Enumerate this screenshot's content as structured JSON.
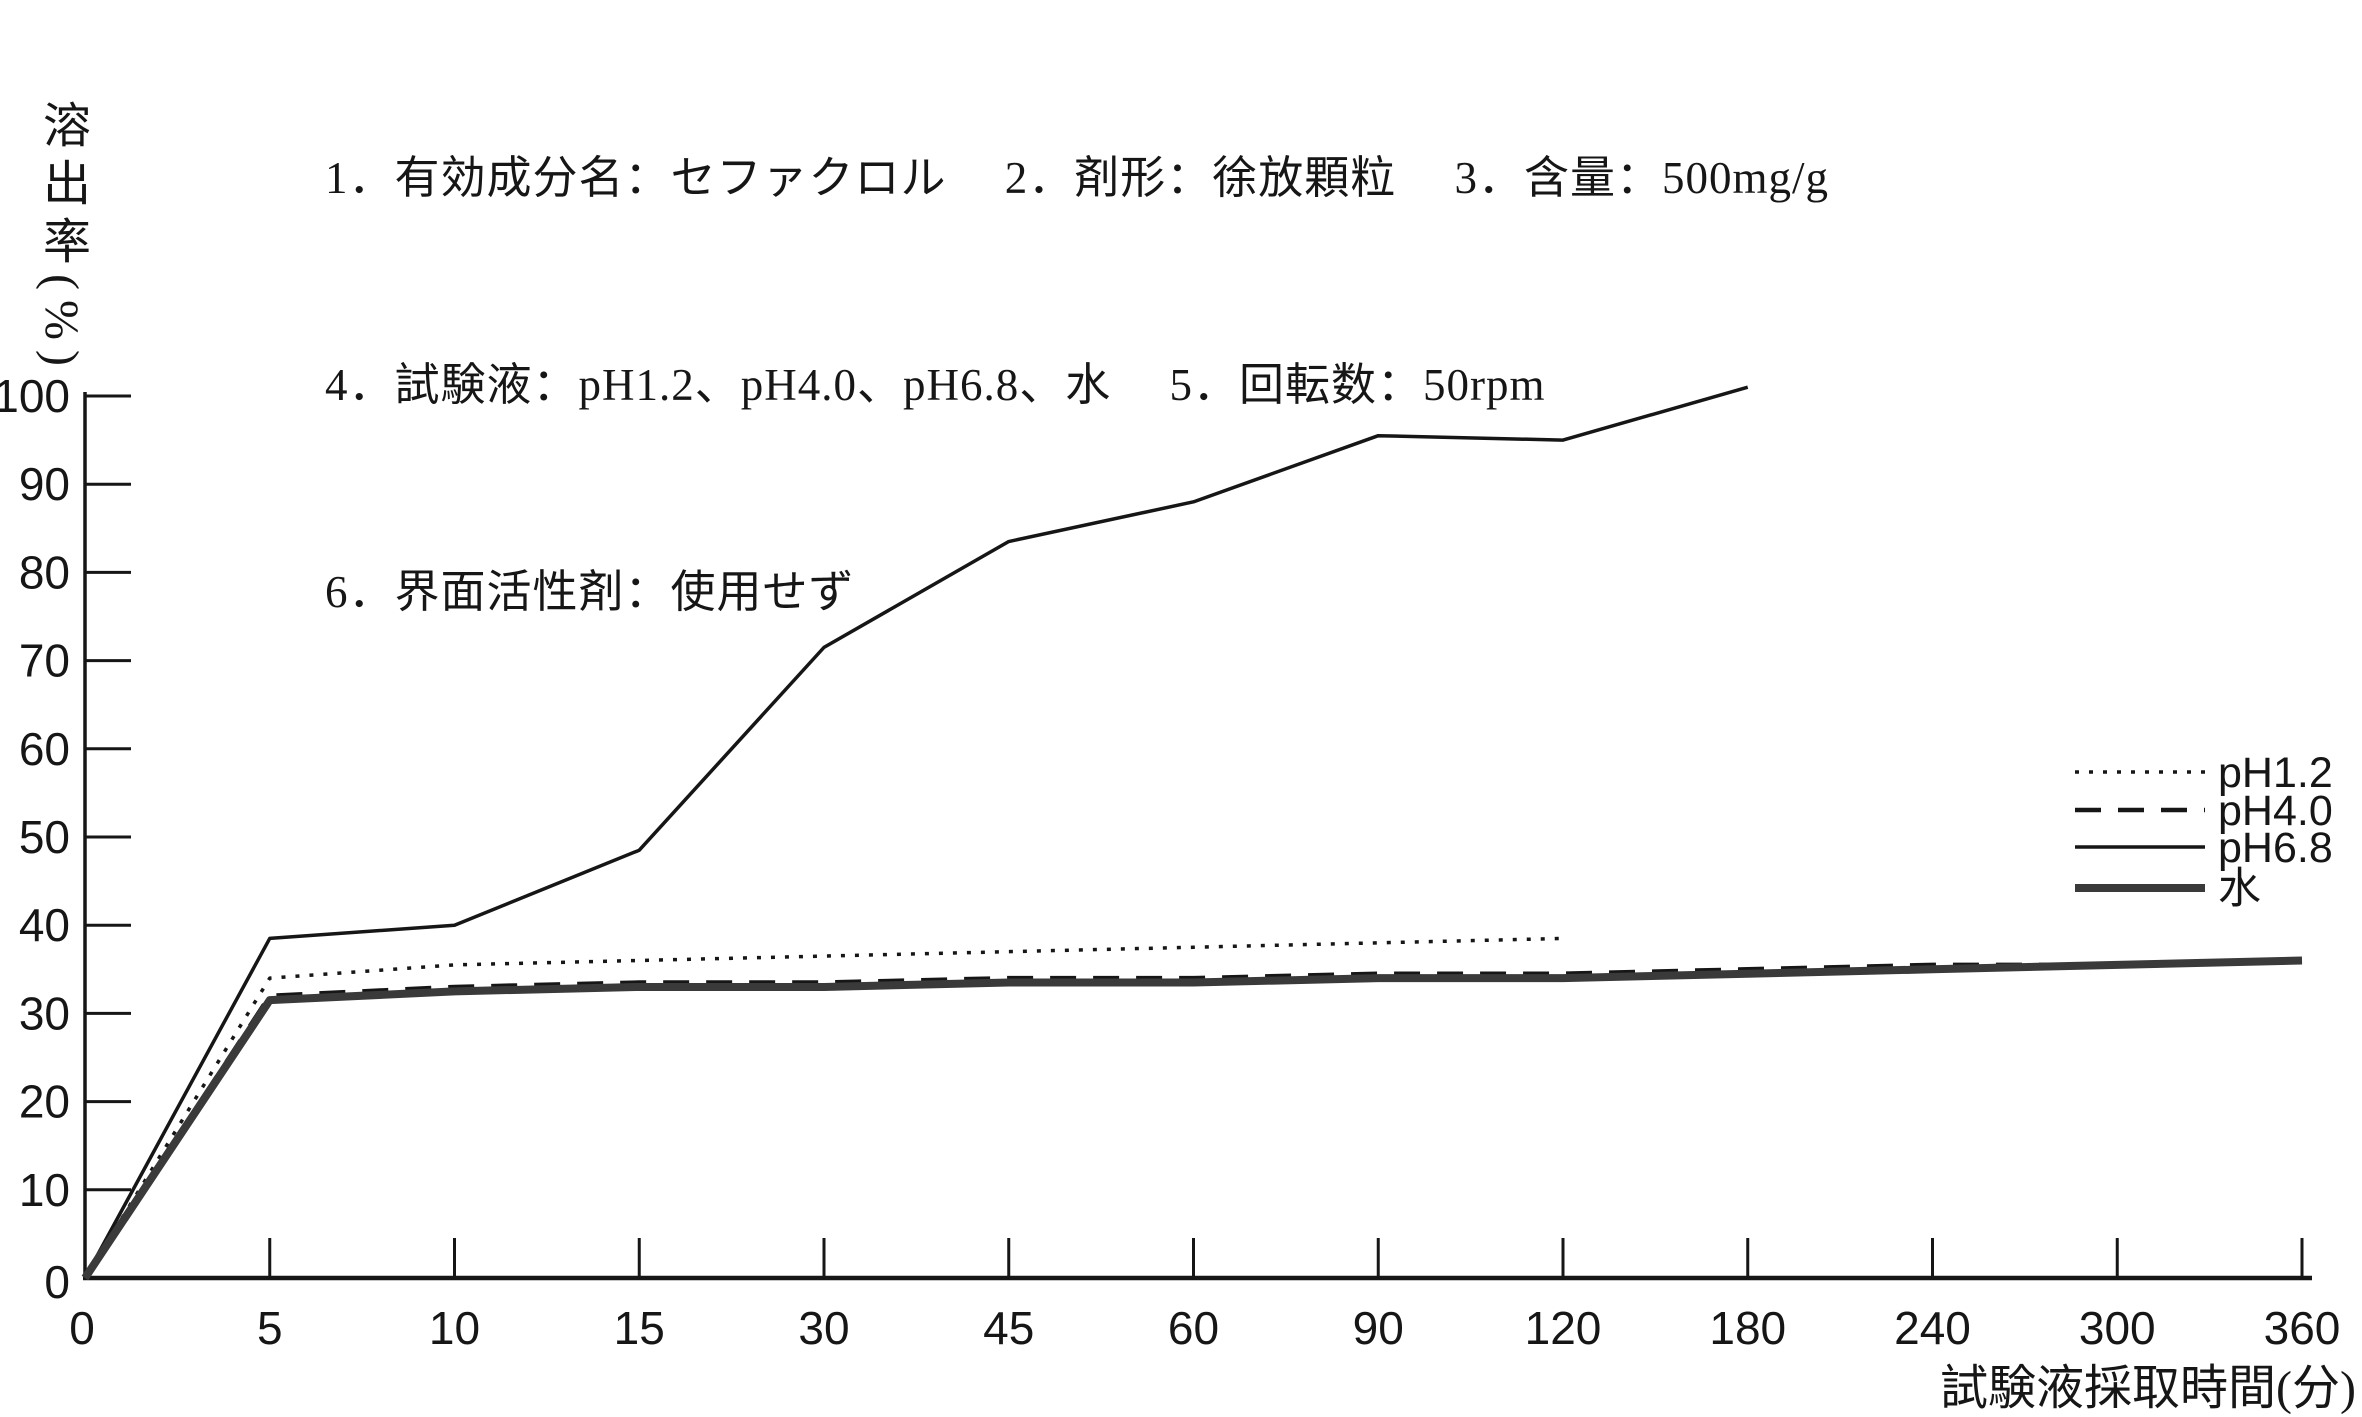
{
  "header": {
    "line1": "1．有効成分名：セファクロル　 2．剤形：徐放顆粒　 3．含量：500mg/g",
    "line2": "4．試験液：pH1.2、pH4.0、pH6.8、水　 5．回転数：50rpm",
    "line3": "6．界面活性剤：使用せず"
  },
  "chart_data": {
    "type": "line",
    "title": "",
    "xlabel": "試験液採取時間(分)",
    "ylabel": "溶出率(%)",
    "x_ticks": [
      0,
      5,
      10,
      15,
      30,
      45,
      60,
      90,
      120,
      180,
      240,
      300,
      360
    ],
    "y_ticks": [
      0,
      10,
      20,
      30,
      40,
      50,
      60,
      70,
      80,
      90,
      100
    ],
    "ylim": [
      0,
      100
    ],
    "x_axis_style": "equal spacing between tick labels (category-like time axis)",
    "grid": "off",
    "legend_position": "right-middle",
    "legend": [
      "pH1.2",
      "pH4.0",
      "pH6.8",
      "水"
    ],
    "series": [
      {
        "name": "pH1.2",
        "style": "dotted",
        "x": [
          0,
          5,
          10,
          15,
          30,
          45,
          60,
          90,
          120
        ],
        "values": [
          0,
          34,
          35.5,
          36,
          36.5,
          37,
          37.5,
          38,
          38.5
        ]
      },
      {
        "name": "pH4.0",
        "style": "dashed",
        "x": [
          0,
          5,
          10,
          15,
          30,
          45,
          60,
          90,
          120,
          180,
          240,
          300,
          360
        ],
        "values": [
          0,
          32,
          33,
          33.5,
          33.5,
          34,
          34,
          34.5,
          34.5,
          35,
          35.5,
          35.5,
          36
        ]
      },
      {
        "name": "pH6.8",
        "style": "solid-thin",
        "x": [
          0,
          5,
          10,
          15,
          30,
          45,
          60,
          90,
          120,
          180
        ],
        "values": [
          0,
          38.5,
          40,
          48.5,
          71.5,
          83.5,
          88,
          95.5,
          95,
          101
        ]
      },
      {
        "name": "水",
        "style": "solid-thick",
        "x": [
          0,
          5,
          10,
          15,
          30,
          45,
          60,
          90,
          120,
          180,
          240,
          300,
          360
        ],
        "values": [
          0,
          31.5,
          32.5,
          33,
          33,
          33.5,
          33.5,
          34,
          34,
          34.5,
          35,
          35.5,
          36
        ]
      }
    ],
    "ink_color": "#161616",
    "thick_line_color": "#3a3a3a"
  }
}
